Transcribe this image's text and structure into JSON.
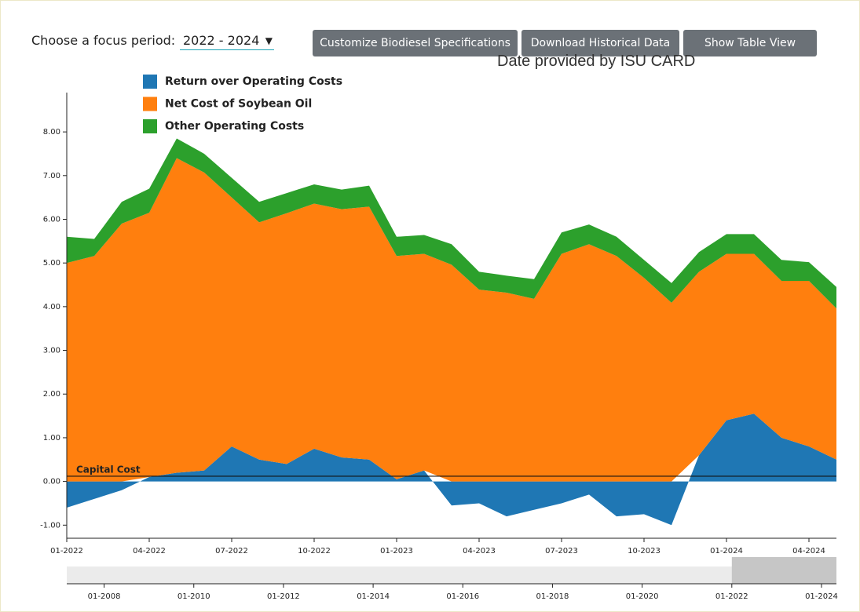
{
  "controls": {
    "focus_label": "Choose a focus period:",
    "focus_value": "2022 - 2024",
    "buttons": [
      "Customize Biodiesel Specifications",
      "Download Historical Data",
      "Show Table View"
    ],
    "source": "Date provided by ISU CARD"
  },
  "chart_data": {
    "type": "stacked-area",
    "legend": "top-left",
    "x": [
      "2022-01",
      "2022-02",
      "2022-03",
      "2022-04",
      "2022-05",
      "2022-06",
      "2022-07",
      "2022-08",
      "2022-09",
      "2022-10",
      "2022-11",
      "2022-12",
      "2023-01",
      "2023-02",
      "2023-03",
      "2023-04",
      "2023-05",
      "2023-06",
      "2023-07",
      "2023-08",
      "2023-09",
      "2023-10",
      "2023-11",
      "2023-12",
      "2024-01",
      "2024-02",
      "2024-03",
      "2024-04",
      "2024-05"
    ],
    "series": [
      {
        "name": "Return over Operating Costs",
        "color": "#1f77b4",
        "values": [
          -0.6,
          -0.4,
          -0.2,
          0.1,
          0.2,
          0.25,
          0.8,
          0.5,
          0.4,
          0.75,
          0.55,
          0.5,
          0.05,
          0.25,
          -0.55,
          -0.5,
          -0.8,
          -0.65,
          -0.5,
          -0.3,
          -0.8,
          -0.75,
          -1.0,
          0.6,
          1.4,
          1.55,
          1.0,
          0.8,
          0.5
        ]
      },
      {
        "name": "Net Cost of Soybean Oil",
        "color": "#ff7f0e",
        "values": [
          5.0,
          5.16,
          5.9,
          6.05,
          7.2,
          6.82,
          5.7,
          5.43,
          5.74,
          5.61,
          5.68,
          5.79,
          5.11,
          4.96,
          4.96,
          4.39,
          4.32,
          4.18,
          5.21,
          5.43,
          5.16,
          4.66,
          4.09,
          4.2,
          3.81,
          3.66,
          3.59,
          3.79,
          3.46
        ]
      },
      {
        "name": "Other Operating Costs",
        "color": "#2ca02c",
        "values": [
          0.6,
          0.39,
          0.5,
          0.55,
          0.45,
          0.43,
          0.45,
          0.47,
          0.46,
          0.44,
          0.45,
          0.48,
          0.44,
          0.43,
          0.47,
          0.41,
          0.39,
          0.45,
          0.49,
          0.45,
          0.44,
          0.41,
          0.45,
          0.45,
          0.45,
          0.45,
          0.48,
          0.43,
          0.49
        ]
      }
    ],
    "xlim": [
      "2022-01",
      "2024-05"
    ],
    "xticks": [
      {
        "value": "2022-01",
        "label": "01-2022"
      },
      {
        "value": "2022-04",
        "label": "04-2022"
      },
      {
        "value": "2022-07",
        "label": "07-2022"
      },
      {
        "value": "2022-10",
        "label": "10-2022"
      },
      {
        "value": "2023-01",
        "label": "01-2023"
      },
      {
        "value": "2023-04",
        "label": "04-2023"
      },
      {
        "value": "2023-07",
        "label": "07-2023"
      },
      {
        "value": "2023-10",
        "label": "10-2023"
      },
      {
        "value": "2024-01",
        "label": "01-2024"
      },
      {
        "value": "2024-04",
        "label": "04-2024"
      }
    ],
    "ylim": [
      -1.3,
      8.9
    ],
    "yticks": [
      {
        "value": -1,
        "label": "-1.00"
      },
      {
        "value": 0,
        "label": "0.00"
      },
      {
        "value": 1,
        "label": "1.00"
      },
      {
        "value": 2,
        "label": "2.00"
      },
      {
        "value": 3,
        "label": "3.00"
      },
      {
        "value": 4,
        "label": "4.00"
      },
      {
        "value": 5,
        "label": "5.00"
      },
      {
        "value": 6,
        "label": "6.00"
      },
      {
        "value": 7,
        "label": "7.00"
      },
      {
        "value": 8,
        "label": "8.00"
      }
    ],
    "capital_cost": {
      "label": "Capital Cost",
      "value": 0.12
    },
    "navigator": {
      "xlim": [
        "2007-03",
        "2024-05"
      ],
      "selection": [
        "2022-01",
        "2024-05"
      ],
      "xticks": [
        {
          "value": "2008-01",
          "label": "01-2008"
        },
        {
          "value": "2010-01",
          "label": "01-2010"
        },
        {
          "value": "2012-01",
          "label": "01-2012"
        },
        {
          "value": "2014-01",
          "label": "01-2014"
        },
        {
          "value": "2016-01",
          "label": "01-2016"
        },
        {
          "value": "2018-01",
          "label": "01-2018"
        },
        {
          "value": "2020-01",
          "label": "01-2020"
        },
        {
          "value": "2022-01",
          "label": "01-2022"
        },
        {
          "value": "2024-01",
          "label": "01-2024"
        }
      ]
    }
  }
}
